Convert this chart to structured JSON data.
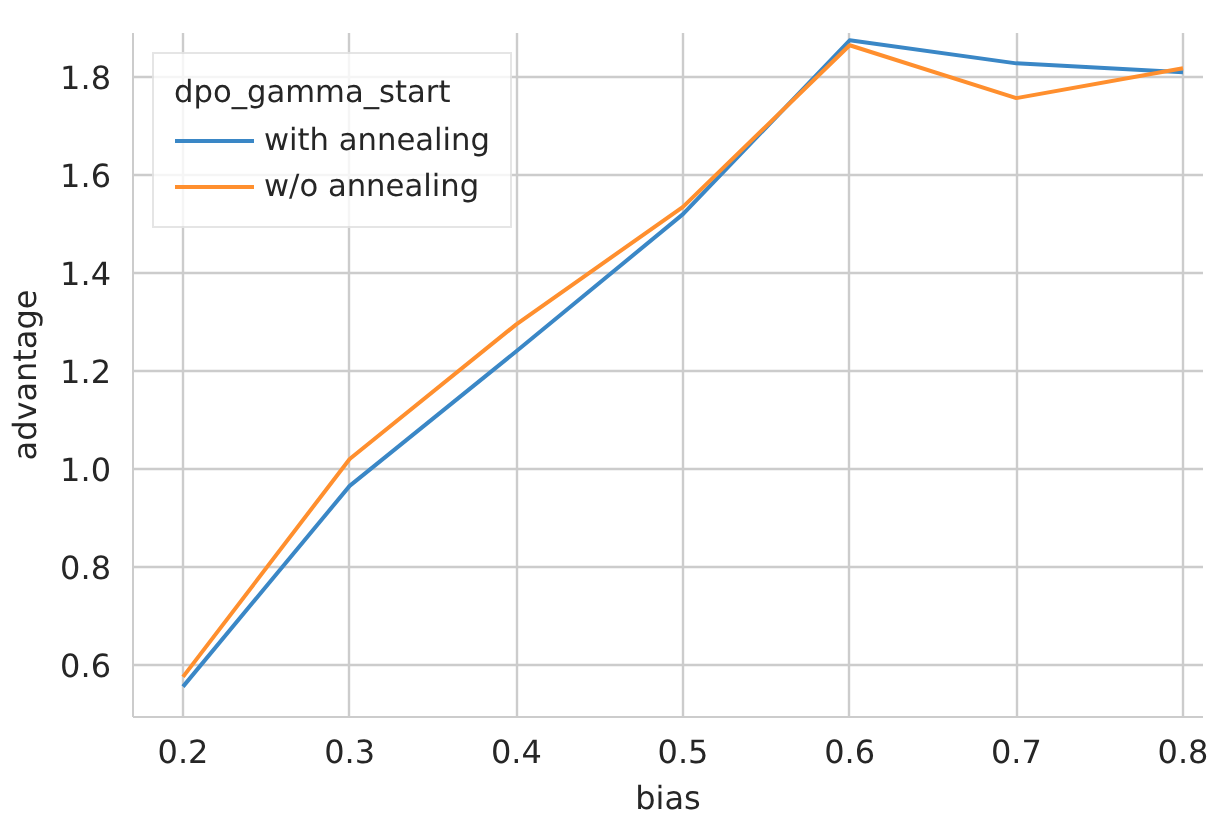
{
  "chart_data": {
    "type": "line",
    "xlabel": "bias",
    "ylabel": "advantage",
    "legend_title": "dpo_gamma_start",
    "x": [
      0.2,
      0.3,
      0.4,
      0.5,
      0.6,
      0.7,
      0.8
    ],
    "series": [
      {
        "name": "with annealing",
        "color": "#3a87c6",
        "values": [
          0.555,
          0.965,
          1.24,
          1.52,
          1.875,
          1.828,
          1.81
        ]
      },
      {
        "name": "w/o annealing",
        "color": "#ff8f2e",
        "values": [
          0.575,
          1.02,
          1.295,
          1.535,
          1.865,
          1.757,
          1.818
        ]
      }
    ],
    "xlim": [
      0.17,
      0.812
    ],
    "ylim": [
      0.493,
      1.89
    ],
    "xticks": [
      0.2,
      0.3,
      0.4,
      0.5,
      0.6,
      0.7,
      0.8
    ],
    "yticks": [
      0.6,
      0.8,
      {
        "value": 1,
        "label": "1.0"
      },
      1.2,
      1.4,
      1.6,
      1.8
    ],
    "grid": true,
    "legend": "top left",
    "line_style": "solid",
    "marker": "none"
  }
}
